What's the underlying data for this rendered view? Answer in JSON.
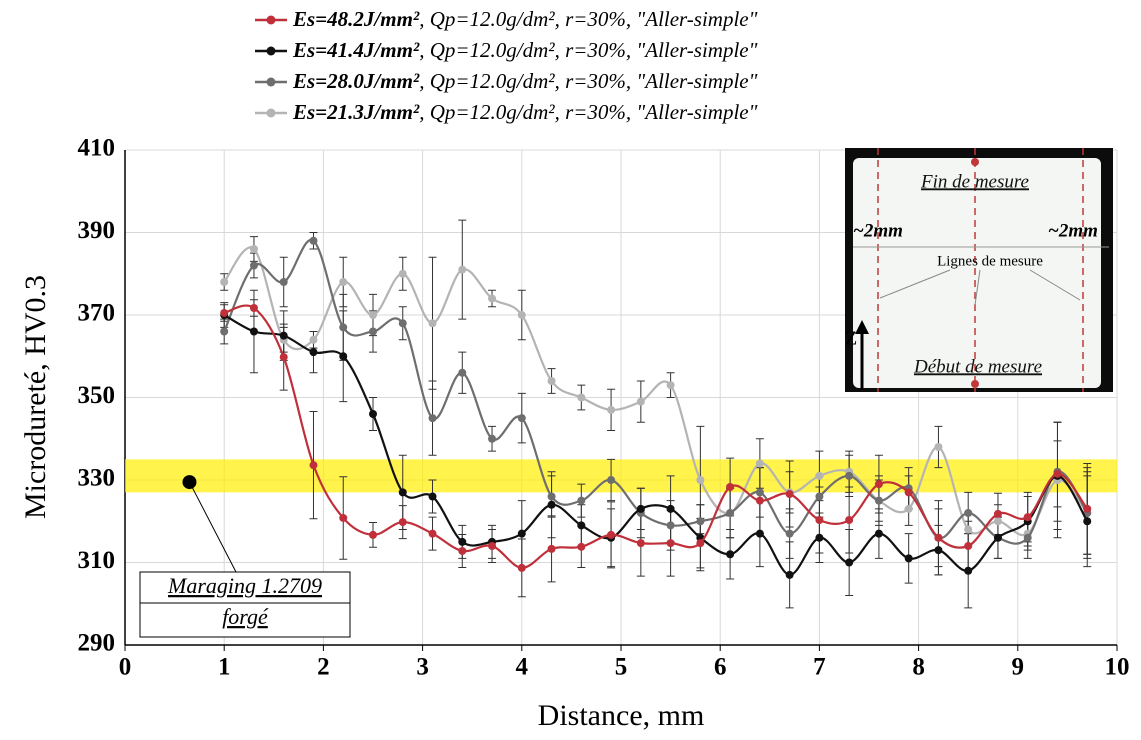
{
  "chart_data": {
    "type": "line",
    "x_label": "Distance, mm",
    "y_label": "Microdureté, HV0.3",
    "x": [
      1.0,
      1.3,
      1.6,
      1.9,
      2.2,
      2.5,
      2.8,
      3.1,
      3.4,
      3.7,
      4.0,
      4.3,
      4.6,
      4.9,
      5.2,
      5.5,
      5.8,
      6.1,
      6.4,
      6.7,
      7.0,
      7.3,
      7.6,
      7.9,
      8.2,
      8.5,
      8.8,
      9.1,
      9.4,
      9.7
    ],
    "series": [
      {
        "name": "Es=48.2J/mm², Qp=12.0g/dm², r=30%, \"Aller-simple\"",
        "color": "#c0303a",
        "values": [
          370.5,
          371.7,
          359.8,
          333.6,
          320.8,
          316.7,
          319.8,
          317,
          312.8,
          314,
          308.7,
          313.3,
          313.8,
          316.7,
          314.7,
          314.7,
          314.7,
          328.3,
          325,
          326.6,
          320.3,
          320.3,
          329,
          327,
          316,
          314,
          321.8,
          321,
          331.5,
          323
        ],
        "errors": [
          2,
          2,
          8,
          13,
          10,
          3,
          4,
          4,
          4,
          4,
          7,
          8,
          5,
          8,
          8,
          8,
          6,
          7,
          8,
          8,
          8,
          8,
          7,
          4,
          7,
          6,
          5,
          6,
          8,
          11
        ]
      },
      {
        "name": "Es=41.4J/mm², Qp=12.0g/dm², r=30%, \"Aller-simple\"",
        "color": "#111111",
        "values": [
          370,
          366,
          365,
          361,
          360,
          346,
          327,
          326,
          315,
          315,
          317,
          324,
          319,
          316,
          323,
          323,
          316,
          312,
          317,
          307,
          316,
          310,
          317,
          311,
          313,
          308,
          316,
          320,
          331,
          320
        ],
        "errors": [
          3,
          10,
          6,
          5,
          11,
          4,
          9,
          4,
          4,
          4,
          8,
          8,
          5,
          7,
          5,
          8,
          8,
          6,
          8,
          8,
          6,
          8,
          6,
          6,
          6,
          9,
          5,
          6,
          13,
          11
        ]
      },
      {
        "name": "Es=28.0J/mm², Qp=12.0g/dm², r=30%, \"Aller-simple\"",
        "color": "#6e6e6e",
        "values": [
          366,
          382,
          378,
          388,
          367,
          366,
          368,
          345,
          356,
          340,
          345,
          326,
          325,
          330,
          322,
          319,
          320,
          322,
          327,
          317,
          326,
          331,
          325,
          328,
          316,
          322,
          316,
          316,
          332,
          322
        ],
        "errors": [
          3,
          3,
          6,
          2,
          8,
          5,
          4,
          9,
          5,
          3,
          6,
          5,
          4,
          5,
          6,
          6,
          4,
          6,
          6,
          6,
          5,
          5,
          6,
          5,
          9,
          5,
          5,
          5,
          12,
          10
        ]
      },
      {
        "name": "Es=21.3J/mm², Qp=12.0g/dm², r=30%, \"Aller-simple\"",
        "color": "#b4b4b4",
        "values": [
          378,
          386,
          364,
          364,
          378,
          370,
          380,
          368,
          381,
          374,
          370,
          354,
          350,
          347,
          349,
          353,
          330,
          322,
          334,
          327,
          331,
          332,
          325,
          323,
          338,
          318,
          320,
          317,
          330,
          322
        ],
        "errors": [
          2,
          3,
          3,
          2,
          6,
          5,
          4,
          16,
          12,
          2,
          6,
          3,
          3,
          5,
          5,
          3,
          13,
          6,
          6,
          5,
          6,
          5,
          5,
          4,
          5,
          4,
          4,
          4,
          14,
          11
        ]
      }
    ],
    "xlim": [
      0,
      10
    ],
    "xticks": [
      0,
      1,
      2,
      3,
      4,
      5,
      6,
      7,
      8,
      9,
      10
    ],
    "ylim": [
      290,
      410
    ],
    "yticks": [
      290,
      310,
      330,
      350,
      370,
      390,
      410
    ],
    "grid": true,
    "band": [
      327,
      335
    ],
    "band_color": "#ffee00",
    "reference": {
      "x": 0.65,
      "y": 329.5,
      "label_lines": [
        "Maraging 1.2709",
        "forgé"
      ]
    },
    "inset": {
      "top_label": "Fin de mesure",
      "bottom_label": "Début de mesure",
      "left_dim": "~2mm",
      "right_dim": "~2mm",
      "lines_label": "Lignes de mesure",
      "axis_label": "Z"
    }
  }
}
